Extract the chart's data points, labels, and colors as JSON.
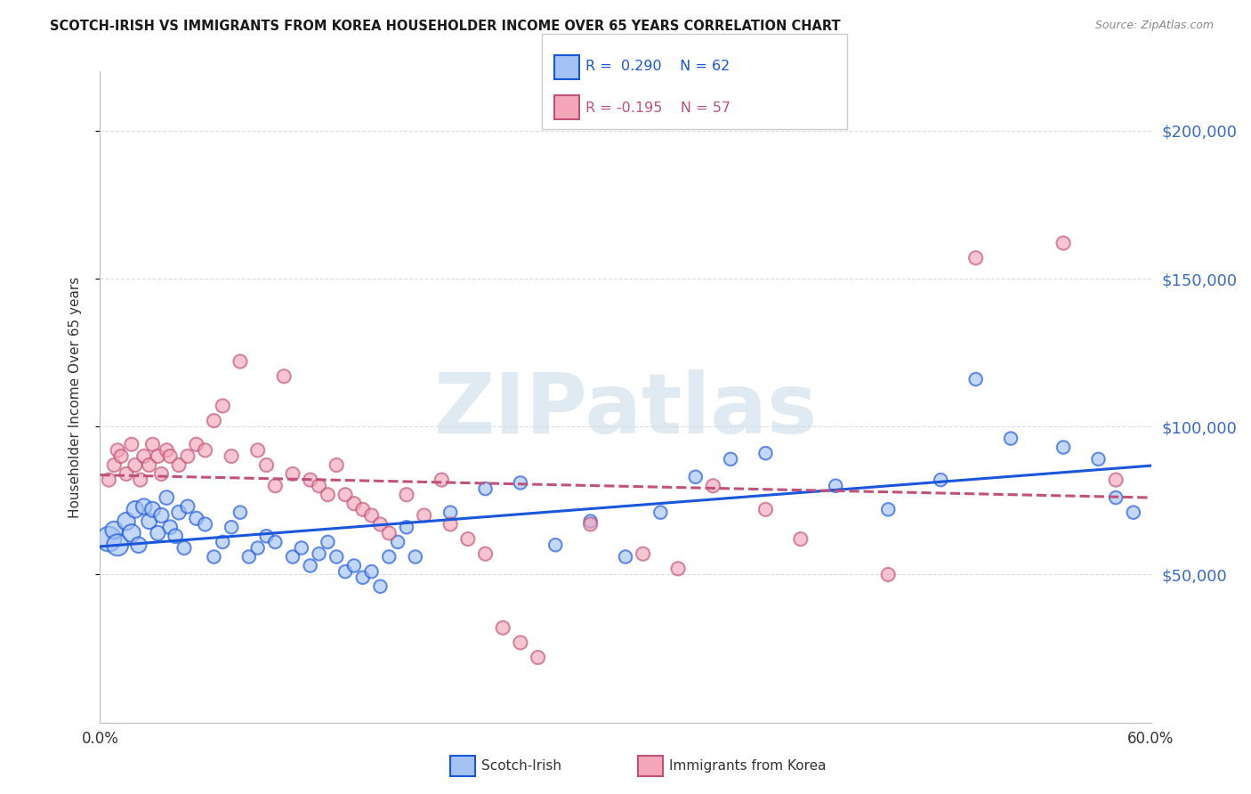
{
  "title": "SCOTCH-IRISH VS IMMIGRANTS FROM KOREA HOUSEHOLDER INCOME OVER 65 YEARS CORRELATION CHART",
  "source": "Source: ZipAtlas.com",
  "ylabel": "Householder Income Over 65 years",
  "blue_label": "Scotch-Irish",
  "pink_label": "Immigrants from Korea",
  "blue_r": "R =  0.290",
  "blue_n": "N = 62",
  "pink_r": "R = -0.195",
  "pink_n": "N = 57",
  "title_color": "#1a1a1a",
  "source_color": "#888888",
  "blue_fill": "#a4c2f4",
  "blue_edge": "#1a56db",
  "pink_fill": "#f4a7b9",
  "pink_edge": "#c0527a",
  "blue_line_color": "#1a56db",
  "pink_line_color": "#c0527a",
  "axis_color": "#bbbbbb",
  "grid_color": "#dddddd",
  "right_tick_color": "#3a6bc4",
  "ylim": [
    0,
    220000
  ],
  "xlim": [
    0.0,
    0.6
  ],
  "yticks": [
    50000,
    100000,
    150000,
    200000
  ],
  "ytick_labels": [
    "$50,000",
    "$100,000",
    "$150,000",
    "$200,000"
  ],
  "blue_x": [
    0.005,
    0.008,
    0.01,
    0.015,
    0.018,
    0.02,
    0.022,
    0.025,
    0.028,
    0.03,
    0.033,
    0.035,
    0.038,
    0.04,
    0.043,
    0.045,
    0.048,
    0.05,
    0.055,
    0.06,
    0.065,
    0.07,
    0.075,
    0.08,
    0.085,
    0.09,
    0.095,
    0.1,
    0.11,
    0.115,
    0.12,
    0.125,
    0.13,
    0.135,
    0.14,
    0.145,
    0.15,
    0.155,
    0.16,
    0.165,
    0.17,
    0.175,
    0.18,
    0.2,
    0.22,
    0.24,
    0.26,
    0.28,
    0.3,
    0.32,
    0.34,
    0.36,
    0.38,
    0.42,
    0.45,
    0.48,
    0.5,
    0.52,
    0.55,
    0.57,
    0.58,
    0.59
  ],
  "blue_y": [
    62000,
    65000,
    60000,
    68000,
    64000,
    72000,
    60000,
    73000,
    68000,
    72000,
    64000,
    70000,
    76000,
    66000,
    63000,
    71000,
    59000,
    73000,
    69000,
    67000,
    56000,
    61000,
    66000,
    71000,
    56000,
    59000,
    63000,
    61000,
    56000,
    59000,
    53000,
    57000,
    61000,
    56000,
    51000,
    53000,
    49000,
    51000,
    46000,
    56000,
    61000,
    66000,
    56000,
    71000,
    79000,
    81000,
    60000,
    68000,
    56000,
    71000,
    83000,
    89000,
    91000,
    80000,
    72000,
    82000,
    116000,
    96000,
    93000,
    89000,
    76000,
    71000
  ],
  "blue_sizes": [
    400,
    200,
    300,
    200,
    200,
    180,
    160,
    160,
    150,
    150,
    140,
    140,
    130,
    130,
    130,
    130,
    120,
    120,
    120,
    120,
    110,
    110,
    110,
    110,
    110,
    110,
    110,
    110,
    110,
    110,
    110,
    110,
    110,
    110,
    110,
    110,
    110,
    110,
    110,
    110,
    110,
    110,
    110,
    110,
    110,
    110,
    110,
    110,
    110,
    110,
    110,
    110,
    110,
    110,
    110,
    110,
    110,
    110,
    110,
    110,
    110,
    110
  ],
  "pink_x": [
    0.005,
    0.008,
    0.01,
    0.012,
    0.015,
    0.018,
    0.02,
    0.023,
    0.025,
    0.028,
    0.03,
    0.033,
    0.035,
    0.038,
    0.04,
    0.045,
    0.05,
    0.055,
    0.06,
    0.065,
    0.07,
    0.075,
    0.08,
    0.09,
    0.095,
    0.1,
    0.105,
    0.11,
    0.12,
    0.125,
    0.13,
    0.135,
    0.14,
    0.145,
    0.15,
    0.155,
    0.16,
    0.165,
    0.175,
    0.185,
    0.195,
    0.2,
    0.21,
    0.22,
    0.23,
    0.24,
    0.25,
    0.28,
    0.31,
    0.33,
    0.35,
    0.38,
    0.4,
    0.45,
    0.5,
    0.55,
    0.58
  ],
  "pink_y": [
    82000,
    87000,
    92000,
    90000,
    84000,
    94000,
    87000,
    82000,
    90000,
    87000,
    94000,
    90000,
    84000,
    92000,
    90000,
    87000,
    90000,
    94000,
    92000,
    102000,
    107000,
    90000,
    122000,
    92000,
    87000,
    80000,
    117000,
    84000,
    82000,
    80000,
    77000,
    87000,
    77000,
    74000,
    72000,
    70000,
    67000,
    64000,
    77000,
    70000,
    82000,
    67000,
    62000,
    57000,
    32000,
    27000,
    22000,
    67000,
    57000,
    52000,
    80000,
    72000,
    62000,
    50000,
    157000,
    162000,
    82000
  ],
  "pink_sizes": [
    120,
    120,
    120,
    120,
    120,
    120,
    120,
    120,
    120,
    120,
    120,
    120,
    120,
    120,
    120,
    120,
    120,
    120,
    120,
    120,
    120,
    120,
    120,
    120,
    120,
    120,
    120,
    120,
    120,
    120,
    120,
    120,
    120,
    120,
    120,
    120,
    120,
    120,
    120,
    120,
    120,
    120,
    120,
    120,
    120,
    120,
    120,
    120,
    120,
    120,
    120,
    120,
    120,
    120,
    120,
    120,
    120
  ]
}
